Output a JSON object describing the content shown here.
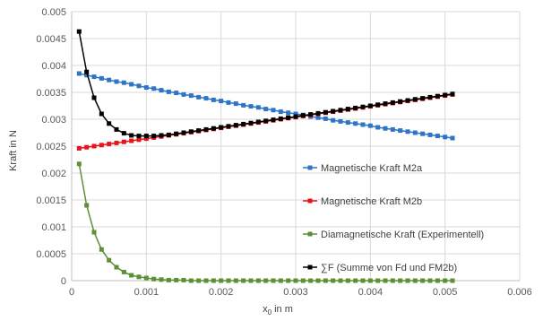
{
  "chart_data": {
    "type": "scatter",
    "xlabel": "x",
    "xlabel_sub": "0",
    "xlabel_unit": " in m",
    "ylabel": "Kraft in N",
    "xlim": [
      0,
      0.006
    ],
    "ylim": [
      0,
      0.005
    ],
    "x_ticks": [
      "0",
      "0.001",
      "0.002",
      "0.003",
      "0.004",
      "0.005",
      "0.006"
    ],
    "y_ticks": [
      "0",
      "0.0005",
      "0.001",
      "0.0015",
      "0.002",
      "0.0025",
      "0.003",
      "0.0035",
      "0.004",
      "0.0045",
      "0.005"
    ],
    "grid": true,
    "legend_position": "center-right",
    "x": [
      0.0001,
      0.0002,
      0.0003,
      0.0004,
      0.0005,
      0.0006,
      0.0007,
      0.0008,
      0.0009,
      0.001,
      0.0011,
      0.0012,
      0.0013,
      0.0014,
      0.0015,
      0.0016,
      0.0017,
      0.0018,
      0.0019,
      0.002,
      0.0021,
      0.0022,
      0.0023,
      0.0024,
      0.0025,
      0.0026,
      0.0027,
      0.0028,
      0.0029,
      0.003,
      0.0031,
      0.0032,
      0.0033,
      0.0034,
      0.0035,
      0.0036,
      0.0037,
      0.0038,
      0.0039,
      0.004,
      0.0041,
      0.0042,
      0.0043,
      0.0044,
      0.0045,
      0.0046,
      0.0047,
      0.0048,
      0.0049,
      0.005,
      0.0051
    ],
    "series": [
      {
        "name": "Magnetische Kraft M2a",
        "color": "#2E75C7",
        "values": [
          0.00385,
          0.00382,
          0.00379,
          0.00376,
          0.00373,
          0.0037,
          0.00368,
          0.00365,
          0.00362,
          0.00359,
          0.00357,
          0.00354,
          0.00351,
          0.00349,
          0.00346,
          0.00344,
          0.00341,
          0.00339,
          0.00336,
          0.00334,
          0.00331,
          0.00329,
          0.00326,
          0.00324,
          0.00322,
          0.00319,
          0.00317,
          0.00314,
          0.00312,
          0.0031,
          0.00308,
          0.00305,
          0.00303,
          0.00301,
          0.00298,
          0.00296,
          0.00294,
          0.00292,
          0.0029,
          0.00288,
          0.00285,
          0.00283,
          0.00281,
          0.00279,
          0.00277,
          0.00275,
          0.00273,
          0.00271,
          0.00269,
          0.00267,
          0.00265
        ]
      },
      {
        "name": "Magnetische Kraft M2b",
        "color": "#E8131B",
        "values": [
          0.00246,
          0.00248,
          0.0025,
          0.00252,
          0.00254,
          0.00256,
          0.00258,
          0.0026,
          0.00262,
          0.00264,
          0.00266,
          0.00268,
          0.0027,
          0.00272,
          0.00274,
          0.00276,
          0.00278,
          0.0028,
          0.00282,
          0.00284,
          0.00286,
          0.00288,
          0.0029,
          0.00292,
          0.00294,
          0.00296,
          0.00298,
          0.003,
          0.00302,
          0.00304,
          0.00306,
          0.00308,
          0.0031,
          0.00312,
          0.00314,
          0.00316,
          0.00318,
          0.0032,
          0.00322,
          0.00324,
          0.00326,
          0.00328,
          0.0033,
          0.00332,
          0.00334,
          0.00336,
          0.00338,
          0.0034,
          0.00342,
          0.00344,
          0.00346
        ]
      },
      {
        "name": "Diamagnetische Kraft (Experimentell)",
        "color": "#5E8F34",
        "values": [
          0.00217,
          0.0014,
          0.0009,
          0.00058,
          0.00038,
          0.00025,
          0.00016,
          0.0001,
          7e-05,
          5e-05,
          3e-05,
          2e-05,
          1e-05,
          1e-05,
          1e-05,
          0,
          0,
          0,
          0,
          0,
          0,
          0,
          0,
          0,
          0,
          0,
          0,
          0,
          0,
          0,
          0,
          0,
          0,
          0,
          0,
          0,
          0,
          0,
          0,
          0,
          0,
          0,
          0,
          0,
          0,
          0,
          0,
          0,
          0,
          0,
          0
        ]
      },
      {
        "name": "∑F (Summe von Fd und FM2b)",
        "color": "#000000",
        "values": [
          0.00463,
          0.00388,
          0.0034,
          0.0031,
          0.00292,
          0.00281,
          0.00274,
          0.0027,
          0.00269,
          0.00269,
          0.00269,
          0.0027,
          0.00271,
          0.00273,
          0.00275,
          0.00277,
          0.00279,
          0.00281,
          0.00283,
          0.00285,
          0.00287,
          0.00289,
          0.00291,
          0.00293,
          0.00295,
          0.00297,
          0.00299,
          0.00301,
          0.00303,
          0.00305,
          0.00307,
          0.00309,
          0.00311,
          0.00313,
          0.00315,
          0.00317,
          0.00319,
          0.00321,
          0.00323,
          0.00325,
          0.00327,
          0.00329,
          0.00331,
          0.00333,
          0.00335,
          0.00337,
          0.00339,
          0.00341,
          0.00343,
          0.00345,
          0.00347
        ]
      }
    ]
  }
}
